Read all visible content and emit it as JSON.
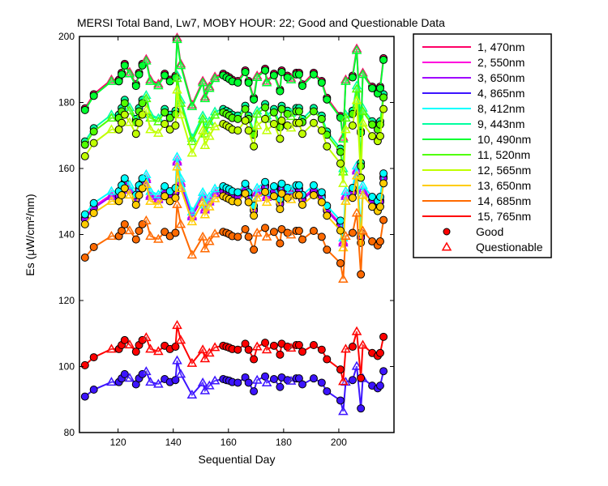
{
  "chart_data": {
    "type": "line",
    "title": "MERSI Total Band,  Lw7, MOBY HOUR: 22;  Good and Questionable Data",
    "xlabel": "Sequential Day",
    "ylabel": "Es (μW/cm²/nm)",
    "xlim": [
      106,
      220
    ],
    "ylim": [
      80,
      200
    ],
    "xticks": [
      120,
      140,
      160,
      180,
      200
    ],
    "yticks": [
      80,
      100,
      120,
      140,
      160,
      180,
      200
    ],
    "grid": false,
    "legend_position": "outside-right",
    "legend_markers": [
      {
        "label": "Good",
        "marker": "circle",
        "color": "#ff0000"
      },
      {
        "label": "Questionable",
        "marker": "triangle",
        "color": "#ff0000"
      }
    ],
    "x": [
      108,
      111.2,
      117.6,
      120.3,
      121.3,
      122.4,
      124.2,
      126.5,
      127.6,
      128.8,
      130.2,
      131.7,
      134.6,
      136.9,
      138.8,
      140.8,
      141.4,
      142.7,
      146.8,
      150.7,
      151.5,
      153.1,
      155.1,
      158.1,
      159.3,
      160.3,
      161.4,
      163.4,
      166.1,
      167.3,
      169.2,
      170.4,
      173.3,
      173.9,
      176.5,
      178.7,
      179.3,
      181.4,
      182.7,
      184.6,
      185.6,
      186.8,
      190.9,
      193.8,
      195.7,
      200.6,
      201.6,
      202.5,
      205,
      206.5,
      208,
      208.7,
      212.1,
      214.1,
      215,
      216.2
    ],
    "quality": [
      "G",
      "G",
      "Q",
      "G",
      "G",
      "G",
      "Q",
      "G",
      "G",
      "G",
      "Q",
      "Q",
      "Q",
      "G",
      "G",
      "G",
      "Q",
      "Q",
      "Q",
      "Q",
      "Q",
      "Q",
      "Q",
      "G",
      "G",
      "G",
      "G",
      "G",
      "G",
      "G",
      "G",
      "Q",
      "G",
      "Q",
      "G",
      "G",
      "G",
      "G",
      "Q",
      "G",
      "G",
      "G",
      "G",
      "G",
      "G",
      "G",
      "Q",
      "Q",
      "G",
      "Q",
      "G",
      "Q",
      "G",
      "G",
      "G",
      "G"
    ],
    "series": [
      {
        "name": "1, 470nm",
        "color": "#ff0066",
        "values": [
          178.2,
          182.5,
          186.9,
          186.9,
          189.0,
          191.7,
          189.2,
          185.5,
          189.0,
          191.7,
          193.1,
          186.9,
          185.6,
          188.7,
          186.9,
          188.1,
          199.6,
          191.7,
          179.3,
          186.5,
          181.7,
          184.8,
          187.8,
          188.7,
          188.1,
          187.6,
          186.9,
          186.5,
          189.7,
          186.5,
          181.4,
          188.1,
          190.2,
          186.5,
          188.7,
          183.9,
          189.7,
          188.1,
          187.4,
          189.0,
          189.0,
          185.5,
          189.0,
          186.5,
          181.4,
          175.9,
          169.5,
          186.9,
          188.1,
          196.3,
          171.3,
          189.0,
          184.8,
          183.2,
          184.8,
          193.4
        ]
      },
      {
        "name": "2, 550nm",
        "color": "#ff00dd",
        "values": [
          145.1,
          148.5,
          152.1,
          152.1,
          153.9,
          156.0,
          154.0,
          151.0,
          153.9,
          156.0,
          157.2,
          152.1,
          151.1,
          153.6,
          152.1,
          153.1,
          162.5,
          156.0,
          145.9,
          151.8,
          148.0,
          150.4,
          152.9,
          153.6,
          153.1,
          152.7,
          152.1,
          151.8,
          154.4,
          151.8,
          147.7,
          153.1,
          154.9,
          151.8,
          153.6,
          149.7,
          154.4,
          153.1,
          152.6,
          153.9,
          153.9,
          151.0,
          153.9,
          151.8,
          147.7,
          143.2,
          138.0,
          152.1,
          153.1,
          159.8,
          139.5,
          153.9,
          150.4,
          149.1,
          150.4,
          157.5
        ]
      },
      {
        "name": "3, 650nm",
        "color": "#a000ff",
        "values": [
          144.6,
          148.0,
          151.6,
          151.6,
          153.4,
          155.5,
          153.5,
          150.5,
          153.4,
          155.5,
          156.7,
          151.6,
          150.6,
          153.1,
          151.6,
          152.6,
          162.0,
          155.5,
          145.4,
          151.3,
          147.5,
          149.9,
          152.4,
          153.1,
          152.6,
          152.2,
          151.6,
          151.3,
          153.9,
          151.3,
          147.2,
          152.6,
          154.4,
          151.3,
          153.1,
          149.2,
          153.9,
          152.6,
          152.1,
          153.4,
          153.4,
          150.5,
          153.4,
          151.3,
          147.2,
          142.7,
          137.5,
          151.6,
          152.6,
          159.3,
          139.0,
          153.4,
          149.9,
          148.6,
          149.9,
          157.0
        ]
      },
      {
        "name": "4, 865nm",
        "color": "#3c14ff",
        "values": [
          90.9,
          93.0,
          95.3,
          95.3,
          96.4,
          97.7,
          96.5,
          94.6,
          96.4,
          97.7,
          98.5,
          95.3,
          94.7,
          96.2,
          95.3,
          95.9,
          101.8,
          97.7,
          91.4,
          95.1,
          92.7,
          94.2,
          95.7,
          96.2,
          95.9,
          95.7,
          95.3,
          95.1,
          96.7,
          95.1,
          92.5,
          95.9,
          97.0,
          95.1,
          96.2,
          93.8,
          96.7,
          95.9,
          95.6,
          96.4,
          96.4,
          94.6,
          96.4,
          95.1,
          92.5,
          89.7,
          86.4,
          95.3,
          95.9,
          100.1,
          87.3,
          96.4,
          94.2,
          93.4,
          94.2,
          98.6
        ]
      },
      {
        "name": "8, 412nm",
        "color": "#00ffff",
        "values": [
          146.1,
          149.5,
          153.1,
          153.1,
          154.9,
          157.0,
          155.0,
          152.0,
          154.9,
          157.0,
          158.2,
          153.1,
          152.1,
          154.6,
          153.1,
          154.1,
          163.5,
          157.0,
          146.9,
          152.8,
          149.0,
          151.4,
          153.9,
          154.6,
          154.1,
          153.7,
          153.1,
          152.8,
          155.4,
          152.8,
          148.7,
          154.1,
          155.9,
          152.8,
          154.6,
          150.7,
          155.4,
          154.1,
          153.6,
          154.9,
          154.9,
          152.0,
          154.9,
          152.8,
          148.7,
          144.2,
          139.0,
          153.1,
          154.1,
          160.8,
          140.5,
          154.9,
          151.4,
          150.1,
          151.4,
          158.5
        ]
      },
      {
        "name": "9, 443nm",
        "color": "#00ffa0",
        "values": [
          168.2,
          172.2,
          176.3,
          176.3,
          178.3,
          180.8,
          178.5,
          175.0,
          178.3,
          180.8,
          182.2,
          176.3,
          175.2,
          178.0,
          176.3,
          177.5,
          188.3,
          180.8,
          169.2,
          176.0,
          171.5,
          174.3,
          177.2,
          178.0,
          177.5,
          177.0,
          176.3,
          176.0,
          179.0,
          176.0,
          171.2,
          177.5,
          179.5,
          176.0,
          178.0,
          173.5,
          179.0,
          177.5,
          176.8,
          178.3,
          178.3,
          175.0,
          178.3,
          176.0,
          171.2,
          166.0,
          160.0,
          176.3,
          177.5,
          185.1,
          161.7,
          178.3,
          174.3,
          172.8,
          174.3,
          182.5
        ]
      },
      {
        "name": "10, 490nm",
        "color": "#00ff30",
        "values": [
          177.7,
          182.0,
          186.4,
          186.4,
          188.5,
          191.2,
          188.7,
          185.0,
          188.5,
          191.2,
          192.6,
          186.4,
          185.1,
          188.2,
          186.4,
          187.6,
          199.1,
          191.2,
          178.8,
          186.0,
          181.2,
          184.3,
          187.3,
          188.2,
          187.6,
          187.1,
          186.4,
          186.0,
          189.2,
          186.0,
          180.9,
          187.6,
          189.7,
          186.0,
          188.2,
          183.4,
          189.2,
          187.6,
          186.9,
          188.5,
          188.5,
          185.0,
          188.5,
          186.0,
          180.9,
          175.4,
          169.0,
          186.4,
          187.6,
          195.8,
          170.8,
          188.5,
          184.3,
          182.7,
          184.3,
          192.9
        ]
      },
      {
        "name": "11, 520nm",
        "color": "#50ff00",
        "values": [
          167.2,
          171.2,
          175.3,
          175.3,
          177.3,
          179.8,
          177.5,
          174.0,
          177.3,
          179.8,
          181.2,
          175.3,
          174.2,
          177.0,
          175.3,
          176.5,
          187.3,
          179.8,
          168.2,
          175.0,
          170.5,
          173.3,
          176.2,
          177.0,
          176.5,
          176.0,
          175.3,
          175.0,
          178.0,
          175.0,
          170.2,
          176.5,
          178.5,
          175.0,
          177.0,
          172.5,
          178.0,
          176.5,
          175.8,
          177.3,
          177.3,
          174.0,
          177.3,
          175.0,
          170.2,
          165.0,
          159.0,
          175.3,
          176.5,
          184.1,
          160.7,
          177.3,
          173.3,
          171.8,
          173.3,
          181.5
        ]
      },
      {
        "name": "12, 565nm",
        "color": "#c0ff00",
        "values": [
          163.7,
          167.7,
          171.8,
          171.8,
          173.8,
          176.3,
          174.0,
          170.5,
          173.8,
          176.3,
          177.7,
          171.8,
          170.7,
          173.5,
          171.8,
          173.0,
          183.8,
          176.3,
          164.7,
          171.5,
          167.0,
          169.8,
          172.7,
          173.5,
          173.0,
          172.5,
          171.8,
          171.5,
          174.5,
          171.5,
          166.7,
          173.0,
          175.0,
          171.5,
          173.5,
          169.0,
          174.5,
          173.0,
          172.3,
          173.8,
          173.8,
          170.5,
          173.8,
          171.5,
          166.7,
          161.5,
          155.5,
          171.8,
          173.0,
          180.6,
          157.2,
          173.8,
          169.8,
          168.3,
          169.8,
          178.0
        ]
      },
      {
        "name": "13, 650nm",
        "color": "#ffcc00",
        "values": [
          143.1,
          146.5,
          150.1,
          150.1,
          151.9,
          154.0,
          152.0,
          149.0,
          151.9,
          154.0,
          155.2,
          150.1,
          149.1,
          151.6,
          150.1,
          151.1,
          160.5,
          154.0,
          143.9,
          149.8,
          146.0,
          148.4,
          150.9,
          151.6,
          151.1,
          150.7,
          150.1,
          149.8,
          152.4,
          149.8,
          145.7,
          151.1,
          152.9,
          149.8,
          151.6,
          147.7,
          152.4,
          151.1,
          150.6,
          151.9,
          151.9,
          149.0,
          151.9,
          149.8,
          145.7,
          141.2,
          136.0,
          150.1,
          151.1,
          157.8,
          137.5,
          151.9,
          148.4,
          147.1,
          148.4,
          155.5
        ]
      },
      {
        "name": "14, 685nm",
        "color": "#ff6a00",
        "values": [
          133.0,
          136.2,
          139.5,
          139.5,
          141.1,
          143.1,
          141.2,
          138.5,
          141.1,
          143.1,
          144.2,
          139.5,
          138.6,
          140.8,
          139.5,
          140.5,
          149.1,
          143.1,
          133.8,
          139.3,
          135.7,
          137.9,
          140.2,
          140.8,
          140.5,
          140.1,
          139.5,
          139.3,
          141.6,
          139.3,
          135.4,
          140.5,
          142.0,
          139.3,
          140.8,
          137.3,
          141.6,
          140.5,
          139.9,
          141.1,
          141.1,
          138.5,
          141.1,
          139.3,
          135.4,
          131.3,
          126.5,
          139.5,
          140.5,
          146.5,
          127.9,
          141.1,
          137.9,
          136.7,
          137.9,
          144.4
        ]
      },
      {
        "name": "15, 765nm",
        "color": "#ff0000",
        "values": [
          100.4,
          102.8,
          105.3,
          105.3,
          106.5,
          108,
          106.6,
          104.5,
          106.5,
          108,
          108.8,
          105.3,
          104.6,
          106.3,
          105.3,
          106,
          112.5,
          108,
          101,
          105.1,
          102.4,
          104.1,
          105.8,
          106.3,
          106,
          105.7,
          105.3,
          105.1,
          106.9,
          105.1,
          102.2,
          106,
          107.2,
          105.1,
          106.3,
          103.6,
          106.9,
          106,
          105.6,
          106.5,
          106.5,
          104.5,
          106.5,
          105.1,
          102.2,
          99.1,
          95.5,
          105.3,
          106,
          110.6,
          96.5,
          106.5,
          104.1,
          103.2,
          104.1,
          109
        ]
      }
    ]
  }
}
